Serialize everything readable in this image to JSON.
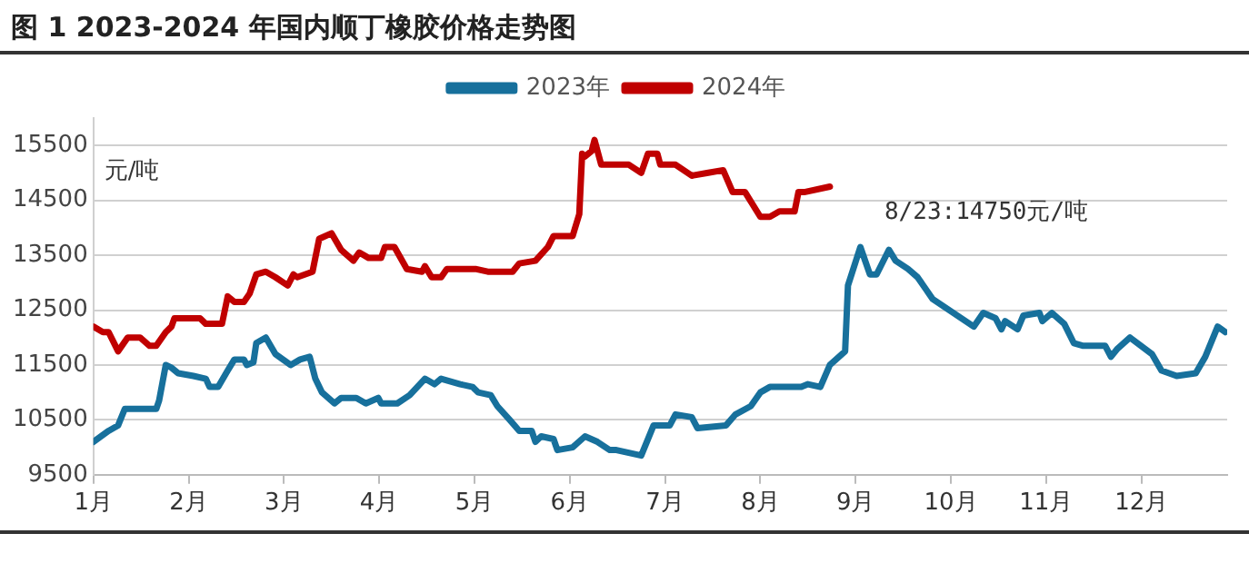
{
  "chart_data": {
    "type": "line",
    "title": "图 1 2023-2024 年国内顺丁橡胶价格走势图",
    "ylabel": "元/吨",
    "xlim": [
      1,
      12.9
    ],
    "ylim": [
      9500,
      16000
    ],
    "xticks": [
      {
        "value": 1,
        "label": "1月"
      },
      {
        "value": 2,
        "label": "2月"
      },
      {
        "value": 3,
        "label": "3月"
      },
      {
        "value": 4,
        "label": "4月"
      },
      {
        "value": 5,
        "label": "5月"
      },
      {
        "value": 6,
        "label": "6月"
      },
      {
        "value": 7,
        "label": "7月"
      },
      {
        "value": 8,
        "label": "8月"
      },
      {
        "value": 9,
        "label": "9月"
      },
      {
        "value": 10,
        "label": "10月"
      },
      {
        "value": 11,
        "label": "11月"
      },
      {
        "value": 12,
        "label": "12月"
      }
    ],
    "yticks": [
      9500,
      10500,
      11500,
      12500,
      13500,
      14500,
      15500
    ],
    "grid": "y",
    "legend": "top",
    "annotations": [
      {
        "text": "8/23:14750元/吨",
        "x": 8.73,
        "y": 14750
      }
    ],
    "series": [
      {
        "name": "2023年",
        "color": "#17709c",
        "x": [
          1.0,
          1.16,
          1.26,
          1.33,
          1.66,
          1.69,
          1.76,
          1.82,
          1.89,
          2.05,
          2.18,
          2.22,
          2.31,
          2.41,
          2.48,
          2.58,
          2.61,
          2.68,
          2.71,
          2.81,
          2.91,
          3.07,
          3.17,
          3.27,
          3.33,
          3.4,
          3.53,
          3.6,
          3.76,
          3.86,
          3.99,
          4.02,
          4.19,
          4.32,
          4.48,
          4.58,
          4.65,
          4.85,
          4.98,
          5.04,
          5.17,
          5.24,
          5.37,
          5.47,
          5.6,
          5.64,
          5.7,
          5.83,
          5.87,
          6.03,
          6.16,
          6.29,
          6.42,
          6.49,
          6.75,
          6.88,
          7.05,
          7.11,
          7.28,
          7.34,
          7.64,
          7.74,
          7.9,
          8.0,
          8.1,
          8.43,
          8.5,
          8.63,
          8.73,
          8.89,
          8.92,
          9.05,
          9.15,
          9.22,
          9.35,
          9.42,
          9.55,
          9.65,
          9.81,
          10.24,
          10.34,
          10.47,
          10.53,
          10.57,
          10.7,
          10.76,
          10.93,
          10.96,
          11.06,
          11.19,
          11.29,
          11.39,
          11.62,
          11.68,
          11.75,
          11.88,
          12.11,
          12.21,
          12.37,
          12.57,
          12.67,
          12.8,
          12.88
        ],
        "values": [
          10100,
          10300,
          10400,
          10700,
          10700,
          10850,
          11500,
          11450,
          11350,
          11300,
          11250,
          11100,
          11100,
          11400,
          11600,
          11600,
          11500,
          11550,
          11900,
          12000,
          11700,
          11500,
          11600,
          11650,
          11250,
          11000,
          10800,
          10900,
          10900,
          10800,
          10900,
          10800,
          10800,
          10950,
          11250,
          11150,
          11250,
          11150,
          11100,
          11000,
          10950,
          10750,
          10500,
          10300,
          10300,
          10100,
          10200,
          10150,
          9950,
          10000,
          10200,
          10100,
          9950,
          9950,
          9850,
          10400,
          10400,
          10600,
          10550,
          10350,
          10400,
          10600,
          10750,
          11000,
          11100,
          11100,
          11150,
          11100,
          11500,
          11750,
          12950,
          13650,
          13150,
          13150,
          13600,
          13400,
          13250,
          13100,
          12700,
          12200,
          12450,
          12350,
          12150,
          12300,
          12150,
          12400,
          12450,
          12300,
          12450,
          12250,
          11900,
          11850,
          11850,
          11650,
          11800,
          12000,
          11700,
          11400,
          11300,
          11350,
          11650,
          12200,
          12100
        ]
      },
      {
        "name": "2024年",
        "color": "#c00000",
        "x": [
          1.0,
          1.1,
          1.16,
          1.26,
          1.36,
          1.49,
          1.59,
          1.66,
          1.76,
          1.82,
          1.85,
          2.12,
          2.18,
          2.35,
          2.41,
          2.48,
          2.58,
          2.64,
          2.71,
          2.81,
          2.91,
          3.04,
          3.1,
          3.14,
          3.3,
          3.37,
          3.5,
          3.6,
          3.73,
          3.79,
          3.89,
          4.02,
          4.06,
          4.16,
          4.29,
          4.45,
          4.48,
          4.55,
          4.65,
          4.71,
          5.01,
          5.14,
          5.4,
          5.47,
          5.64,
          5.77,
          5.83,
          6.03,
          6.1,
          6.13,
          6.16,
          6.23,
          6.26,
          6.33,
          6.62,
          6.75,
          6.82,
          6.92,
          6.95,
          7.11,
          7.28,
          7.44,
          7.61,
          7.71,
          7.84,
          8.0,
          8.1,
          8.2,
          8.36,
          8.4,
          8.46,
          8.73
        ],
        "values": [
          12200,
          12100,
          12100,
          11750,
          12000,
          12000,
          11850,
          11850,
          12100,
          12200,
          12350,
          12350,
          12250,
          12250,
          12750,
          12650,
          12650,
          12800,
          13150,
          13200,
          13100,
          12950,
          13150,
          13100,
          13200,
          13800,
          13900,
          13600,
          13400,
          13550,
          13450,
          13450,
          13650,
          13650,
          13250,
          13200,
          13300,
          13100,
          13100,
          13250,
          13250,
          13200,
          13200,
          13350,
          13400,
          13650,
          13850,
          13850,
          14250,
          15350,
          15300,
          15400,
          15600,
          15150,
          15150,
          15000,
          15350,
          15350,
          15150,
          15150,
          14950,
          15000,
          15050,
          14650,
          14650,
          14200,
          14200,
          14300,
          14300,
          14650,
          14650,
          14750
        ]
      }
    ]
  }
}
